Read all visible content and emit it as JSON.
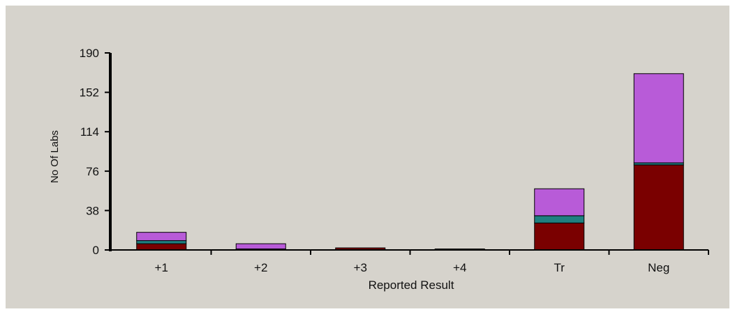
{
  "chart_data": {
    "type": "bar",
    "stacked": true,
    "title": "",
    "xlabel": "Reported Result",
    "ylabel": "No Of Labs",
    "ylim": [
      0,
      190
    ],
    "yticks": [
      0,
      38,
      76,
      114,
      152,
      190
    ],
    "categories": [
      "+1",
      "+2",
      "+3",
      "+4",
      "Tr",
      "Neg"
    ],
    "series": [
      {
        "color": "#7a0000",
        "values": [
          6,
          1,
          2,
          1,
          26,
          82
        ]
      },
      {
        "color": "#1f8080",
        "values": [
          3,
          0,
          0,
          0,
          7,
          2
        ]
      },
      {
        "color": "#b85bd8",
        "values": [
          8,
          5,
          0,
          0,
          26,
          86
        ]
      }
    ],
    "grid": false,
    "legend": "none"
  }
}
